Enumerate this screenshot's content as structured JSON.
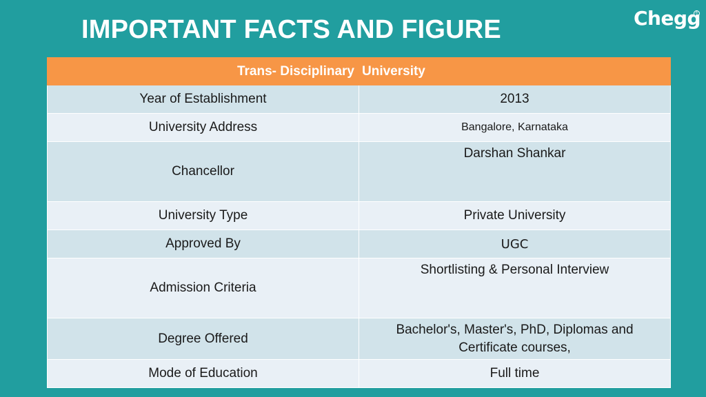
{
  "header": {
    "title": "IMPORTANT FACTS AND FIGURE",
    "logo": "Chegg",
    "logo_mark": "®"
  },
  "table": {
    "heading_left": "Trans- Disciplinary",
    "heading_right": "University",
    "rows": [
      {
        "label": "Year of Establishment",
        "value": "2013"
      },
      {
        "label": "University Address",
        "value": "Bangalore, Karnataka"
      },
      {
        "label": "Chancellor",
        "value": "Darshan Shankar"
      },
      {
        "label": "University Type",
        "value": "Private University"
      },
      {
        "label": "Approved By",
        "value": "UGC"
      },
      {
        "label": "Admission Criteria",
        "value": "Shortlisting & Personal Interview"
      },
      {
        "label": "Degree Offered",
        "value": "Bachelor's, Master's, PhD, Diplomas and Certificate courses,"
      },
      {
        "label": "Mode of Education",
        "value": "Full time"
      }
    ]
  },
  "colors": {
    "background": "#219e9f",
    "header_bar": "#f79646",
    "row_dark": "#d1e3ea",
    "row_light": "#e9f0f6"
  }
}
